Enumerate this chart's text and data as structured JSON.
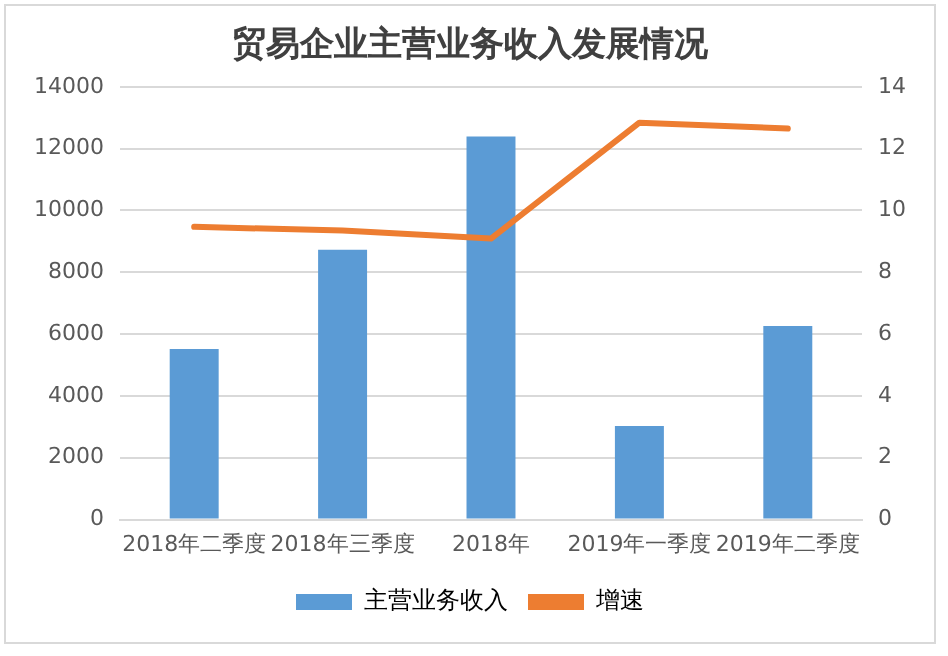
{
  "chart_data": {
    "type": "bar",
    "title": "贸易企业主营业务收入发展情况",
    "categories": [
      "2018年二季度",
      "2018年三季度",
      "2018年",
      "2019年一季度",
      "2019年二季度"
    ],
    "series": [
      {
        "name": "主营业务收入",
        "color": "#5b9bd5",
        "values": [
          5520,
          8730,
          12390,
          3030,
          6260
        ]
      },
      {
        "name": "增速",
        "type": "line",
        "axis": "y2",
        "color": "#ed7d31",
        "values": [
          9.47,
          9.35,
          9.09,
          12.84,
          12.65
        ]
      }
    ],
    "ylim": [
      0,
      14000
    ],
    "yticks": [
      0,
      2000,
      4000,
      6000,
      8000,
      10000,
      12000,
      14000
    ],
    "y2lim": [
      0,
      14
    ],
    "y2ticks": [
      0,
      2,
      4,
      6,
      8,
      10,
      12,
      14
    ],
    "grid": "y",
    "legend": "bottom",
    "marker": "none"
  }
}
